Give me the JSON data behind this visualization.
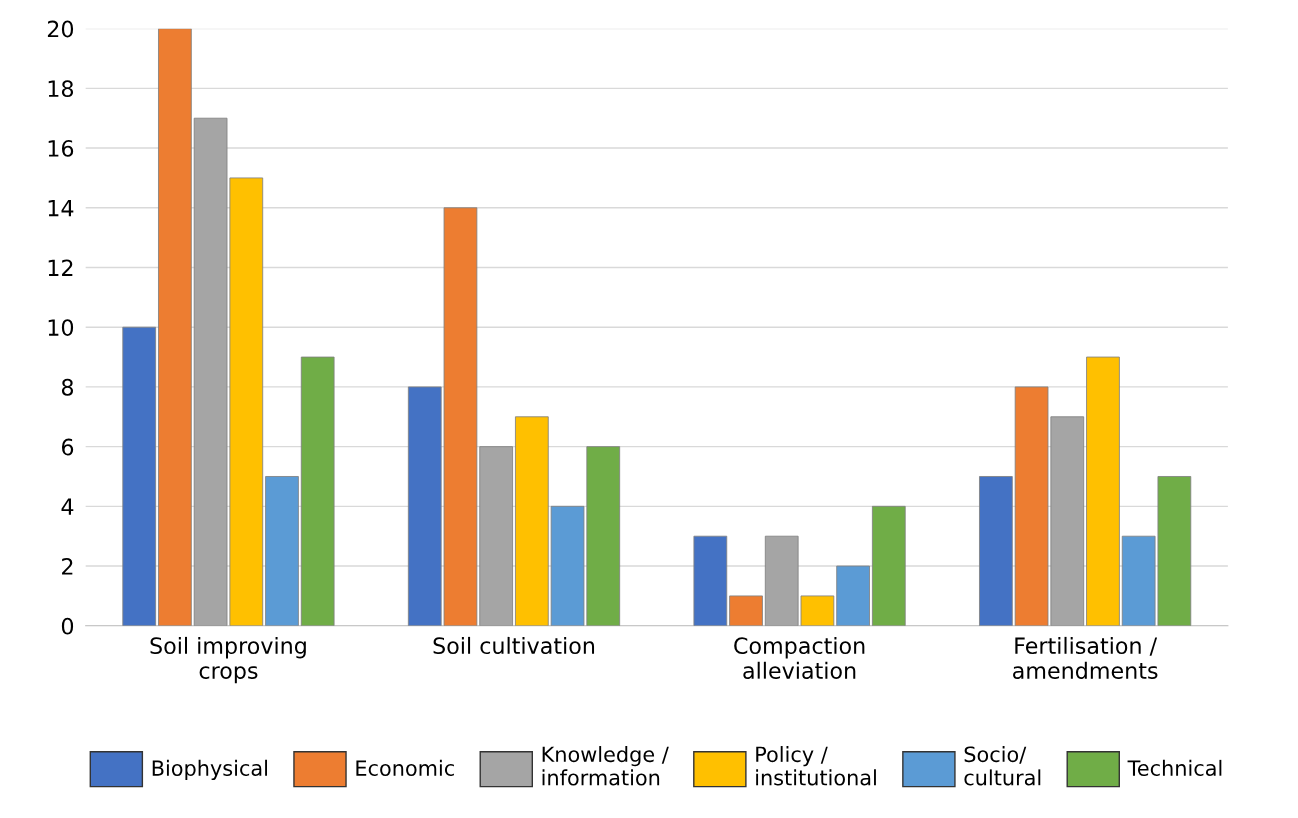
{
  "chart_data": {
    "type": "bar",
    "categories": [
      "Soil improving\ncrops",
      "Soil cultivation",
      "Compaction\nalleviation",
      "Fertilisation /\namendments"
    ],
    "series": [
      {
        "name": "Biophysical",
        "color": "#4472c4",
        "values": [
          10,
          8,
          3,
          5
        ]
      },
      {
        "name": "Economic",
        "color": "#ed7d31",
        "values": [
          20,
          14,
          1,
          8
        ]
      },
      {
        "name": "Knowledge /\ninformation",
        "color": "#a5a5a5",
        "values": [
          17,
          6,
          3,
          7
        ]
      },
      {
        "name": "Policy /\ninstitutional",
        "color": "#ffc000",
        "values": [
          15,
          7,
          1,
          9
        ]
      },
      {
        "name": "Socio/\ncultural",
        "color": "#5b9bd5",
        "values": [
          5,
          4,
          2,
          3
        ]
      },
      {
        "name": "Technical",
        "color": "#70ad47",
        "values": [
          9,
          6,
          4,
          5
        ]
      }
    ],
    "ylim": [
      0,
      20
    ],
    "yticks": [
      0,
      2,
      4,
      6,
      8,
      10,
      12,
      14,
      16,
      18,
      20
    ],
    "grid": "y",
    "legend": "bottom"
  }
}
